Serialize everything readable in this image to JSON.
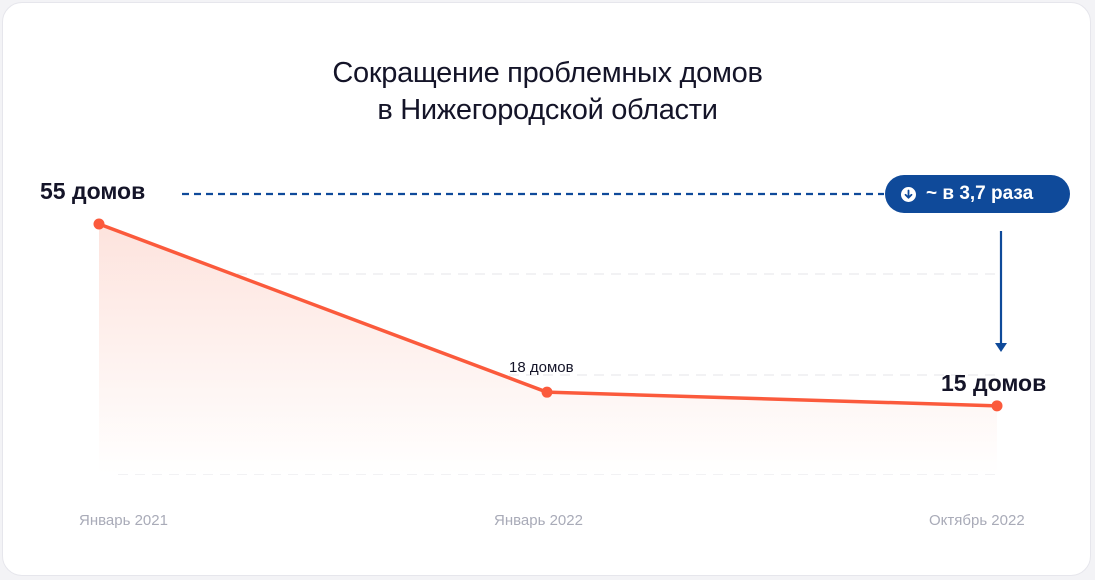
{
  "chart_data": {
    "type": "area",
    "title": "Сокращение проблемных домов в Нижегородской области",
    "title_lines": [
      "Сокращение проблемных домов",
      "в Нижегородской области"
    ],
    "categories": [
      "Январь 2021",
      "Январь 2022",
      "Октябрь 2022"
    ],
    "values": [
      55,
      18,
      15
    ],
    "data_labels": [
      "55 домов",
      "18 домов",
      "15 домов"
    ],
    "annotation": "~ в 3,7 раза",
    "annotation_icon": "arrow-down-circle-icon",
    "ylim": [
      0,
      55
    ],
    "grid": true,
    "colors": {
      "line": "#fb5a3c",
      "area": "#fde3dd",
      "accent": "#0f4a9a",
      "text": "#141428",
      "ticks": "#a9abb8"
    }
  }
}
